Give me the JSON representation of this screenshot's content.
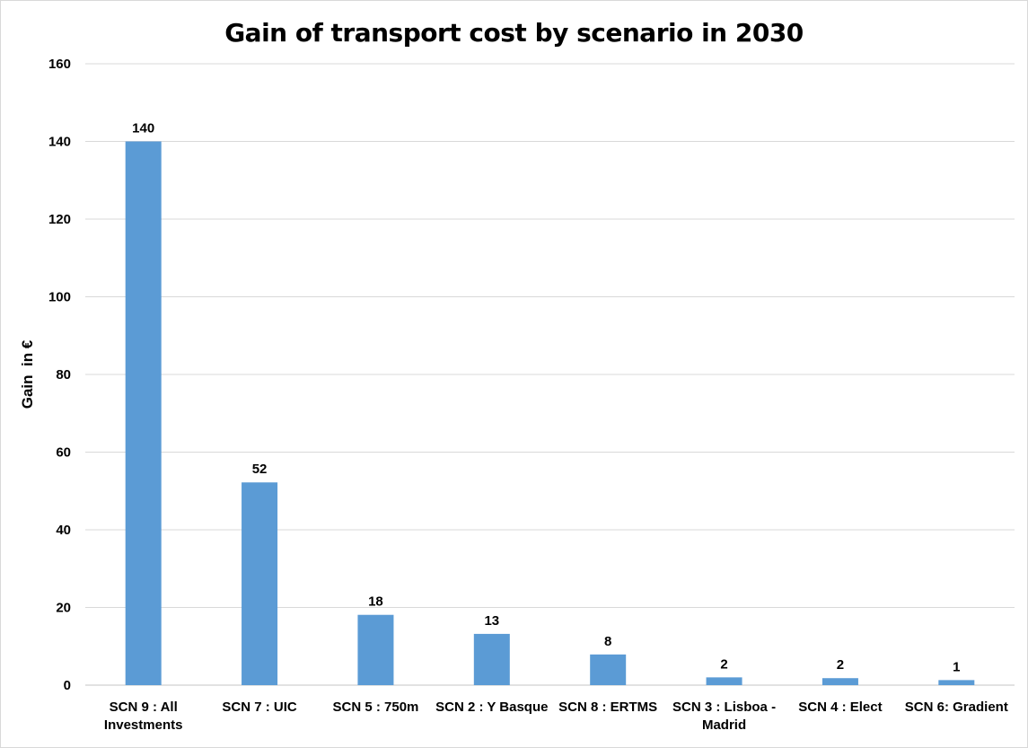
{
  "chart_data": {
    "type": "bar",
    "title": "Gain of transport cost by scenario in 2030",
    "xlabel": "",
    "ylabel": "Gain  in €",
    "categories": [
      "SCN 9 : All Investments",
      "SCN 7 : UIC",
      "SCN 5 : 750m",
      "SCN 2 : Y Basque",
      "SCN 8 : ERTMS",
      "SCN 3 : Lisboa - Madrid",
      "SCN 4 : Elect",
      "SCN 6: Gradient"
    ],
    "category_lines": [
      [
        "SCN 9 : All",
        "Investments"
      ],
      [
        "SCN 7 : UIC"
      ],
      [
        "SCN 5 : 750m"
      ],
      [
        "SCN 2 : Y Basque"
      ],
      [
        "SCN 8 : ERTMS"
      ],
      [
        "SCN 3 : Lisboa -",
        "Madrid"
      ],
      [
        "SCN 4 : Elect"
      ],
      [
        "SCN 6: Gradient"
      ]
    ],
    "values": [
      140,
      52.2,
      18.1,
      13.2,
      7.9,
      2.0,
      1.8,
      1.3
    ],
    "data_labels": [
      "140",
      "52",
      "18",
      "13",
      "8",
      "2",
      "2",
      "1"
    ],
    "ylim": [
      0,
      160
    ],
    "yticks": [
      "0",
      "20",
      "40",
      "60",
      "80",
      "100",
      "120",
      "140",
      "160"
    ],
    "grid": true,
    "legend": "none",
    "bar_color": "#5b9bd5",
    "grid_color": "#d9d9d9"
  }
}
